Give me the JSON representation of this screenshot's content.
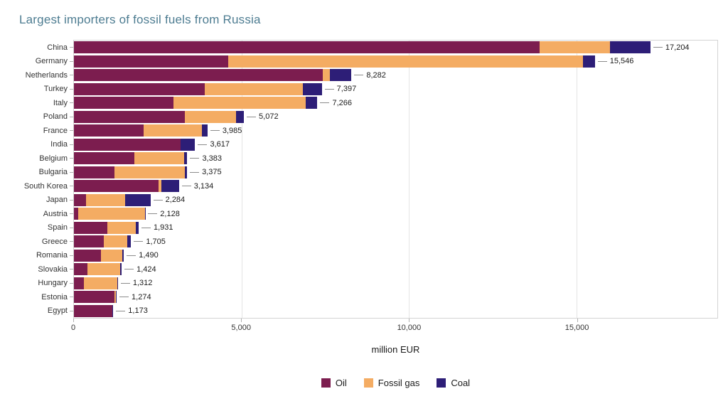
{
  "chart_data": {
    "type": "bar",
    "orientation": "horizontal",
    "stacked": true,
    "title": "Largest importers of fossil fuels from Russia",
    "xlabel": "million EUR",
    "ylabel": "",
    "xlim": [
      0,
      19200
    ],
    "xticks": [
      0,
      5000,
      10000,
      15000
    ],
    "xtick_labels": [
      "0",
      "5,000",
      "10,000",
      "15,000"
    ],
    "grid": true,
    "legend_position": "bottom",
    "categories": [
      "China",
      "Germany",
      "Netherlands",
      "Turkey",
      "Italy",
      "Poland",
      "France",
      "India",
      "Belgium",
      "Bulgaria",
      "South Korea",
      "Japan",
      "Austria",
      "Spain",
      "Greece",
      "Romania",
      "Slovakia",
      "Hungary",
      "Estonia",
      "Egypt"
    ],
    "totals": [
      17204,
      15546,
      8282,
      7397,
      7266,
      5072,
      3985,
      3617,
      3383,
      3375,
      3134,
      2284,
      2128,
      1931,
      1705,
      1490,
      1424,
      1312,
      1274,
      1173
    ],
    "total_labels": [
      "17,204",
      "15,546",
      "8,282",
      "7,397",
      "7,266",
      "5,072",
      "3,985",
      "3,617",
      "3,383",
      "3,375",
      "3,134",
      "2,284",
      "2,128",
      "1,931",
      "1,705",
      "1,490",
      "1,424",
      "1,312",
      "1,274",
      "1,173"
    ],
    "series": [
      {
        "name": "Oil",
        "color": "#7c1d4f",
        "values": [
          13900,
          4600,
          7430,
          3900,
          2980,
          3300,
          2070,
          3190,
          1810,
          1215,
          2530,
          360,
          120,
          1000,
          900,
          800,
          405,
          300,
          1214,
          1143
        ]
      },
      {
        "name": "Fossil gas",
        "color": "#f4ac63",
        "values": [
          2100,
          10600,
          210,
          2940,
          3930,
          1540,
          1745,
          0,
          1488,
          2105,
          70,
          1175,
          2000,
          851,
          700,
          640,
          980,
          1000,
          30,
          0
        ]
      },
      {
        "name": "Coal",
        "color": "#2d1e77",
        "values": [
          1204,
          346,
          642,
          557,
          356,
          232,
          170,
          427,
          85,
          55,
          534,
          749,
          8,
          80,
          105,
          50,
          39,
          12,
          30,
          30
        ]
      }
    ]
  }
}
